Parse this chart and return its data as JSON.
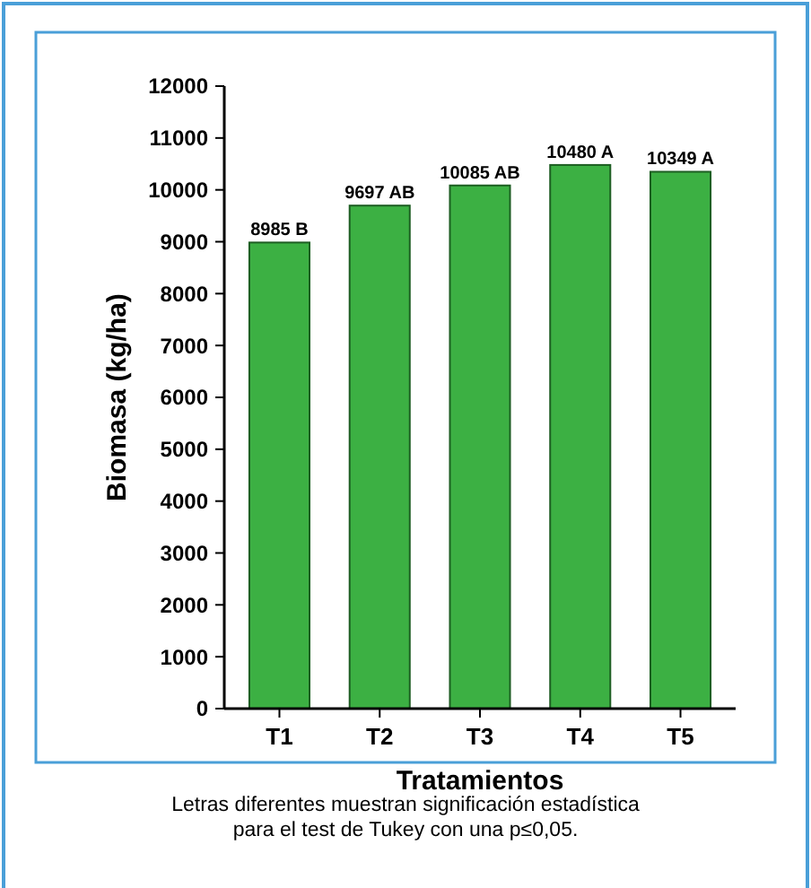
{
  "chart_data": {
    "type": "bar",
    "xlabel": "Tratamientos",
    "ylabel": "Biomasa (kg/ha)",
    "categories": [
      "T1",
      "T2",
      "T3",
      "T4",
      "T5"
    ],
    "values": [
      8985,
      9697,
      10085,
      10480,
      10349
    ],
    "value_labels": [
      "8985 B",
      "9697 AB",
      "10085 AB",
      "10480 A",
      "10349 A"
    ],
    "color": "#3cb043",
    "ylim": [
      0,
      12000
    ],
    "yticks": [
      0,
      1000,
      2000,
      3000,
      4000,
      5000,
      6000,
      7000,
      8000,
      9000,
      10000,
      11000,
      12000
    ],
    "grid": false,
    "annotations": [
      "Letras diferentes muestran significación estadística para el test de Tukey con una p≤0,05."
    ]
  }
}
